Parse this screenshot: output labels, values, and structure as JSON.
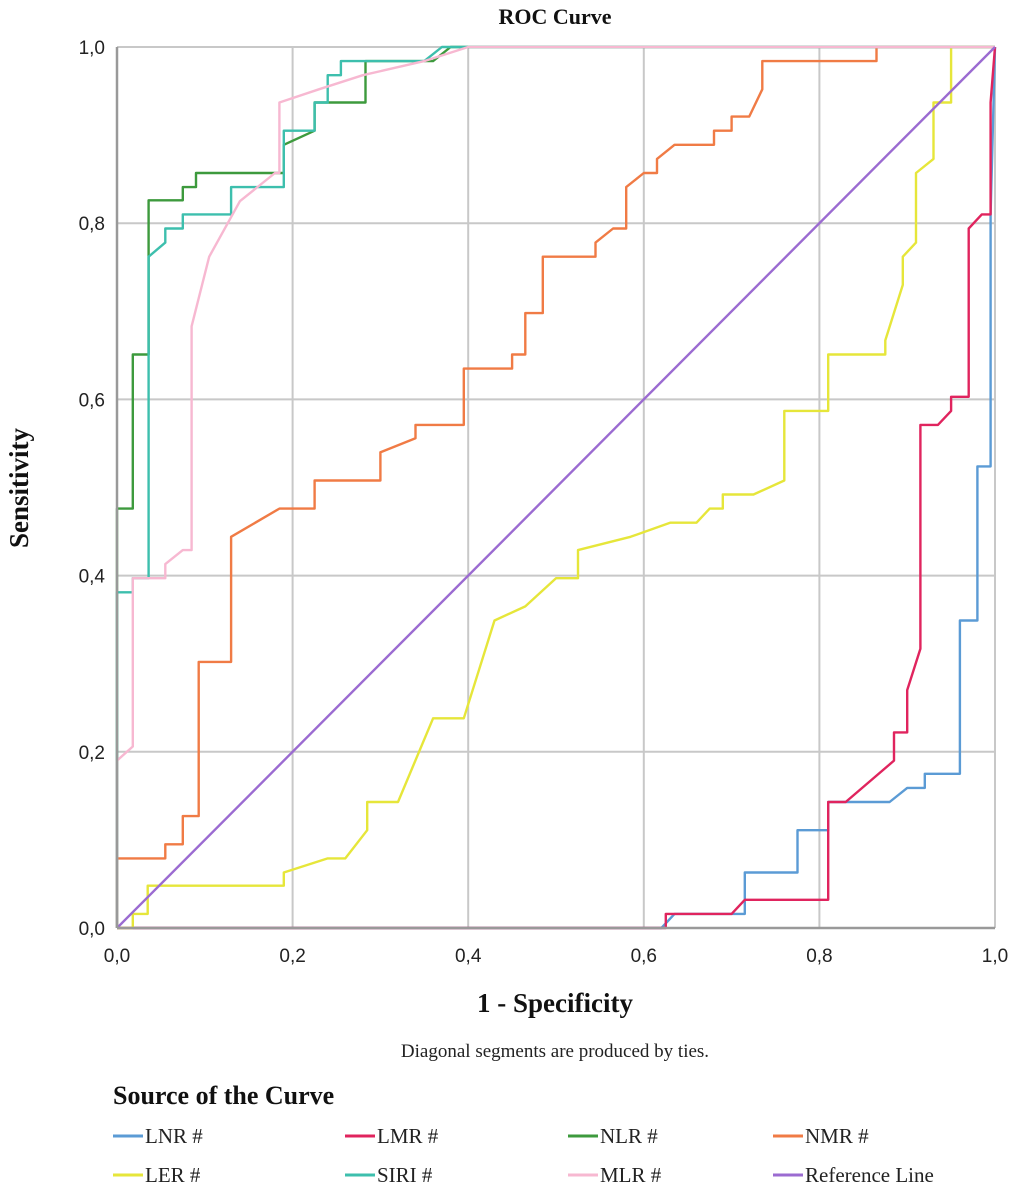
{
  "chart_data": {
    "type": "line",
    "title": "ROC Curve",
    "xlabel": "1 - Specificity",
    "ylabel": "Sensitivity",
    "xlim": [
      0,
      1
    ],
    "ylim": [
      0,
      1
    ],
    "grid": true,
    "x_ticks": [
      "0,0",
      "0,2",
      "0,4",
      "0,6",
      "0,8",
      "1,0"
    ],
    "y_ticks": [
      "0,0",
      "0,2",
      "0,4",
      "0,6",
      "0,8",
      "1,0"
    ],
    "x_tick_values": [
      0,
      0.2,
      0.4,
      0.6,
      0.8,
      1.0
    ],
    "y_tick_values": [
      0,
      0.2,
      0.4,
      0.6,
      0.8,
      1.0
    ],
    "note": "Diagonal segments are produced by ties.",
    "legend_title": "Source of the Curve",
    "legend_position": "bottom",
    "series": [
      {
        "name": "LNR #",
        "color": "#5b9bd5",
        "points": [
          [
            0,
            0
          ],
          [
            0.62,
            0
          ],
          [
            0.635,
            0.016
          ],
          [
            0.7,
            0.016
          ],
          [
            0.715,
            0.016
          ],
          [
            0.715,
            0.063
          ],
          [
            0.775,
            0.063
          ],
          [
            0.775,
            0.111
          ],
          [
            0.81,
            0.111
          ],
          [
            0.81,
            0.143
          ],
          [
            0.88,
            0.143
          ],
          [
            0.9,
            0.159
          ],
          [
            0.92,
            0.159
          ],
          [
            0.92,
            0.175
          ],
          [
            0.96,
            0.175
          ],
          [
            0.96,
            0.349
          ],
          [
            0.98,
            0.349
          ],
          [
            0.98,
            0.524
          ],
          [
            0.995,
            0.524
          ],
          [
            0.995,
            0.81
          ],
          [
            1,
            1
          ]
        ]
      },
      {
        "name": "LMR #",
        "color": "#e0245e",
        "points": [
          [
            0,
            0
          ],
          [
            0.625,
            0
          ],
          [
            0.625,
            0.016
          ],
          [
            0.7,
            0.016
          ],
          [
            0.715,
            0.032
          ],
          [
            0.81,
            0.032
          ],
          [
            0.81,
            0.143
          ],
          [
            0.83,
            0.143
          ],
          [
            0.885,
            0.19
          ],
          [
            0.885,
            0.222
          ],
          [
            0.9,
            0.222
          ],
          [
            0.9,
            0.27
          ],
          [
            0.915,
            0.317
          ],
          [
            0.915,
            0.571
          ],
          [
            0.935,
            0.571
          ],
          [
            0.95,
            0.587
          ],
          [
            0.95,
            0.603
          ],
          [
            0.97,
            0.603
          ],
          [
            0.97,
            0.794
          ],
          [
            0.985,
            0.81
          ],
          [
            0.995,
            0.81
          ],
          [
            0.995,
            0.937
          ],
          [
            1,
            1
          ]
        ]
      },
      {
        "name": "NLR #",
        "color": "#3d9a3d",
        "points": [
          [
            0,
            0
          ],
          [
            0,
            0.476
          ],
          [
            0.018,
            0.476
          ],
          [
            0.018,
            0.651
          ],
          [
            0.036,
            0.651
          ],
          [
            0.036,
            0.826
          ],
          [
            0.075,
            0.826
          ],
          [
            0.075,
            0.841
          ],
          [
            0.09,
            0.841
          ],
          [
            0.09,
            0.857
          ],
          [
            0.19,
            0.857
          ],
          [
            0.19,
            0.889
          ],
          [
            0.225,
            0.905
          ],
          [
            0.225,
            0.937
          ],
          [
            0.283,
            0.937
          ],
          [
            0.283,
            0.984
          ],
          [
            0.36,
            0.984
          ],
          [
            0.38,
            1
          ],
          [
            1,
            1
          ]
        ]
      },
      {
        "name": "NMR #",
        "color": "#f07b45",
        "points": [
          [
            0,
            0
          ],
          [
            0,
            0.079
          ],
          [
            0.055,
            0.079
          ],
          [
            0.055,
            0.095
          ],
          [
            0.075,
            0.095
          ],
          [
            0.075,
            0.127
          ],
          [
            0.093,
            0.127
          ],
          [
            0.093,
            0.302
          ],
          [
            0.13,
            0.302
          ],
          [
            0.13,
            0.444
          ],
          [
            0.185,
            0.476
          ],
          [
            0.225,
            0.476
          ],
          [
            0.225,
            0.508
          ],
          [
            0.3,
            0.508
          ],
          [
            0.3,
            0.54
          ],
          [
            0.34,
            0.556
          ],
          [
            0.34,
            0.571
          ],
          [
            0.395,
            0.571
          ],
          [
            0.395,
            0.635
          ],
          [
            0.45,
            0.635
          ],
          [
            0.45,
            0.651
          ],
          [
            0.465,
            0.651
          ],
          [
            0.465,
            0.698
          ],
          [
            0.485,
            0.698
          ],
          [
            0.485,
            0.762
          ],
          [
            0.545,
            0.762
          ],
          [
            0.545,
            0.778
          ],
          [
            0.565,
            0.794
          ],
          [
            0.58,
            0.794
          ],
          [
            0.58,
            0.841
          ],
          [
            0.6,
            0.857
          ],
          [
            0.615,
            0.857
          ],
          [
            0.615,
            0.873
          ],
          [
            0.635,
            0.889
          ],
          [
            0.68,
            0.889
          ],
          [
            0.68,
            0.905
          ],
          [
            0.7,
            0.905
          ],
          [
            0.7,
            0.921
          ],
          [
            0.72,
            0.921
          ],
          [
            0.735,
            0.952
          ],
          [
            0.735,
            0.984
          ],
          [
            0.865,
            0.984
          ],
          [
            0.865,
            1
          ],
          [
            1,
            1
          ]
        ]
      },
      {
        "name": "LER #",
        "color": "#e6e63a",
        "points": [
          [
            0,
            0
          ],
          [
            0.018,
            0
          ],
          [
            0.018,
            0.016
          ],
          [
            0.035,
            0.016
          ],
          [
            0.035,
            0.048
          ],
          [
            0.19,
            0.048
          ],
          [
            0.19,
            0.063
          ],
          [
            0.24,
            0.079
          ],
          [
            0.26,
            0.079
          ],
          [
            0.285,
            0.111
          ],
          [
            0.285,
            0.143
          ],
          [
            0.32,
            0.143
          ],
          [
            0.36,
            0.238
          ],
          [
            0.395,
            0.238
          ],
          [
            0.43,
            0.349
          ],
          [
            0.465,
            0.365
          ],
          [
            0.5,
            0.397
          ],
          [
            0.525,
            0.397
          ],
          [
            0.525,
            0.429
          ],
          [
            0.585,
            0.444
          ],
          [
            0.63,
            0.46
          ],
          [
            0.66,
            0.46
          ],
          [
            0.675,
            0.476
          ],
          [
            0.69,
            0.476
          ],
          [
            0.69,
            0.492
          ],
          [
            0.725,
            0.492
          ],
          [
            0.76,
            0.508
          ],
          [
            0.76,
            0.587
          ],
          [
            0.81,
            0.587
          ],
          [
            0.81,
            0.651
          ],
          [
            0.875,
            0.651
          ],
          [
            0.875,
            0.667
          ],
          [
            0.895,
            0.73
          ],
          [
            0.895,
            0.762
          ],
          [
            0.91,
            0.778
          ],
          [
            0.91,
            0.857
          ],
          [
            0.93,
            0.873
          ],
          [
            0.93,
            0.937
          ],
          [
            0.95,
            0.937
          ],
          [
            0.95,
            1
          ],
          [
            1,
            1
          ]
        ]
      },
      {
        "name": "SIRI #",
        "color": "#3dbfad",
        "points": [
          [
            0,
            0
          ],
          [
            0,
            0.381
          ],
          [
            0.018,
            0.381
          ],
          [
            0.018,
            0.397
          ],
          [
            0.036,
            0.397
          ],
          [
            0.036,
            0.762
          ],
          [
            0.055,
            0.778
          ],
          [
            0.055,
            0.794
          ],
          [
            0.075,
            0.794
          ],
          [
            0.075,
            0.81
          ],
          [
            0.13,
            0.81
          ],
          [
            0.13,
            0.841
          ],
          [
            0.19,
            0.841
          ],
          [
            0.19,
            0.905
          ],
          [
            0.225,
            0.905
          ],
          [
            0.225,
            0.937
          ],
          [
            0.24,
            0.937
          ],
          [
            0.24,
            0.968
          ],
          [
            0.255,
            0.968
          ],
          [
            0.255,
            0.984
          ],
          [
            0.29,
            0.984
          ],
          [
            0.35,
            0.984
          ],
          [
            0.37,
            1
          ],
          [
            1,
            1
          ]
        ]
      },
      {
        "name": "MLR #",
        "color": "#f7b8d1",
        "points": [
          [
            0,
            0
          ],
          [
            0,
            0.19
          ],
          [
            0.018,
            0.206
          ],
          [
            0.018,
            0.397
          ],
          [
            0.055,
            0.397
          ],
          [
            0.055,
            0.413
          ],
          [
            0.075,
            0.429
          ],
          [
            0.085,
            0.429
          ],
          [
            0.085,
            0.683
          ],
          [
            0.105,
            0.762
          ],
          [
            0.14,
            0.825
          ],
          [
            0.18,
            0.857
          ],
          [
            0.185,
            0.857
          ],
          [
            0.185,
            0.937
          ],
          [
            0.23,
            0.952
          ],
          [
            0.28,
            0.968
          ],
          [
            0.35,
            0.984
          ],
          [
            0.4,
            1
          ],
          [
            1,
            1
          ]
        ]
      },
      {
        "name": "Reference Line",
        "color": "#9b6bd1",
        "points": [
          [
            0,
            0
          ],
          [
            1,
            1
          ]
        ]
      }
    ]
  }
}
